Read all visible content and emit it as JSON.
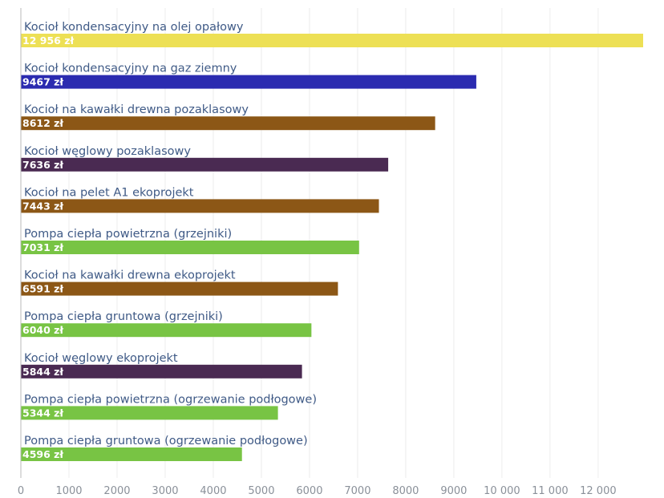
{
  "chart_data": {
    "type": "bar",
    "orientation": "horizontal",
    "title": "",
    "xlabel": "",
    "ylabel": "",
    "xlim": [
      0,
      13000
    ],
    "grid": true,
    "legend": "none",
    "value_unit": "zł",
    "categories": [
      "Kocioł kondensacyjny na olej opałowy",
      "Kocioł kondensacyjny na gaz ziemny",
      "Kocioł na kawałki drewna pozaklasowy",
      "Kocioł węglowy pozaklasowy",
      "Kocioł na pelet A1 ekoprojekt",
      "Pompa ciepła powietrzna (grzejniki)",
      "Kocioł na kawałki drewna ekoprojekt",
      "Pompa ciepła gruntowa (grzejniki)",
      "Kocioł węglowy ekoprojekt",
      "Pompa ciepła powietrzna (ogrzewanie podłogowe)",
      "Pompa ciepła gruntowa (ogrzewanie podłogowe)"
    ],
    "values": [
      12956,
      9467,
      8612,
      7636,
      7443,
      7031,
      6591,
      6040,
      5844,
      5344,
      4596
    ],
    "value_labels": [
      "12 956 zł",
      "9467 zł",
      "8612 zł",
      "7636 zł",
      "7443 zł",
      "7031 zł",
      "6591 zł",
      "6040 zł",
      "5844 zł",
      "5344 zł",
      "4596 zł"
    ],
    "colors": [
      "#ede055",
      "#2b2bb0",
      "#8c5716",
      "#4a2a52",
      "#8c5716",
      "#78c444",
      "#8c5716",
      "#78c444",
      "#4a2a52",
      "#78c444",
      "#78c444"
    ],
    "x_ticks": [
      0,
      1000,
      2000,
      3000,
      4000,
      5000,
      6000,
      7000,
      8000,
      9000,
      10000,
      11000,
      12000
    ],
    "x_tick_labels": [
      "0",
      "1000",
      "2000",
      "3000",
      "4000",
      "5000",
      "6000",
      "7000",
      "8000",
      "9000",
      "10 000",
      "11 000",
      "12 000"
    ]
  }
}
